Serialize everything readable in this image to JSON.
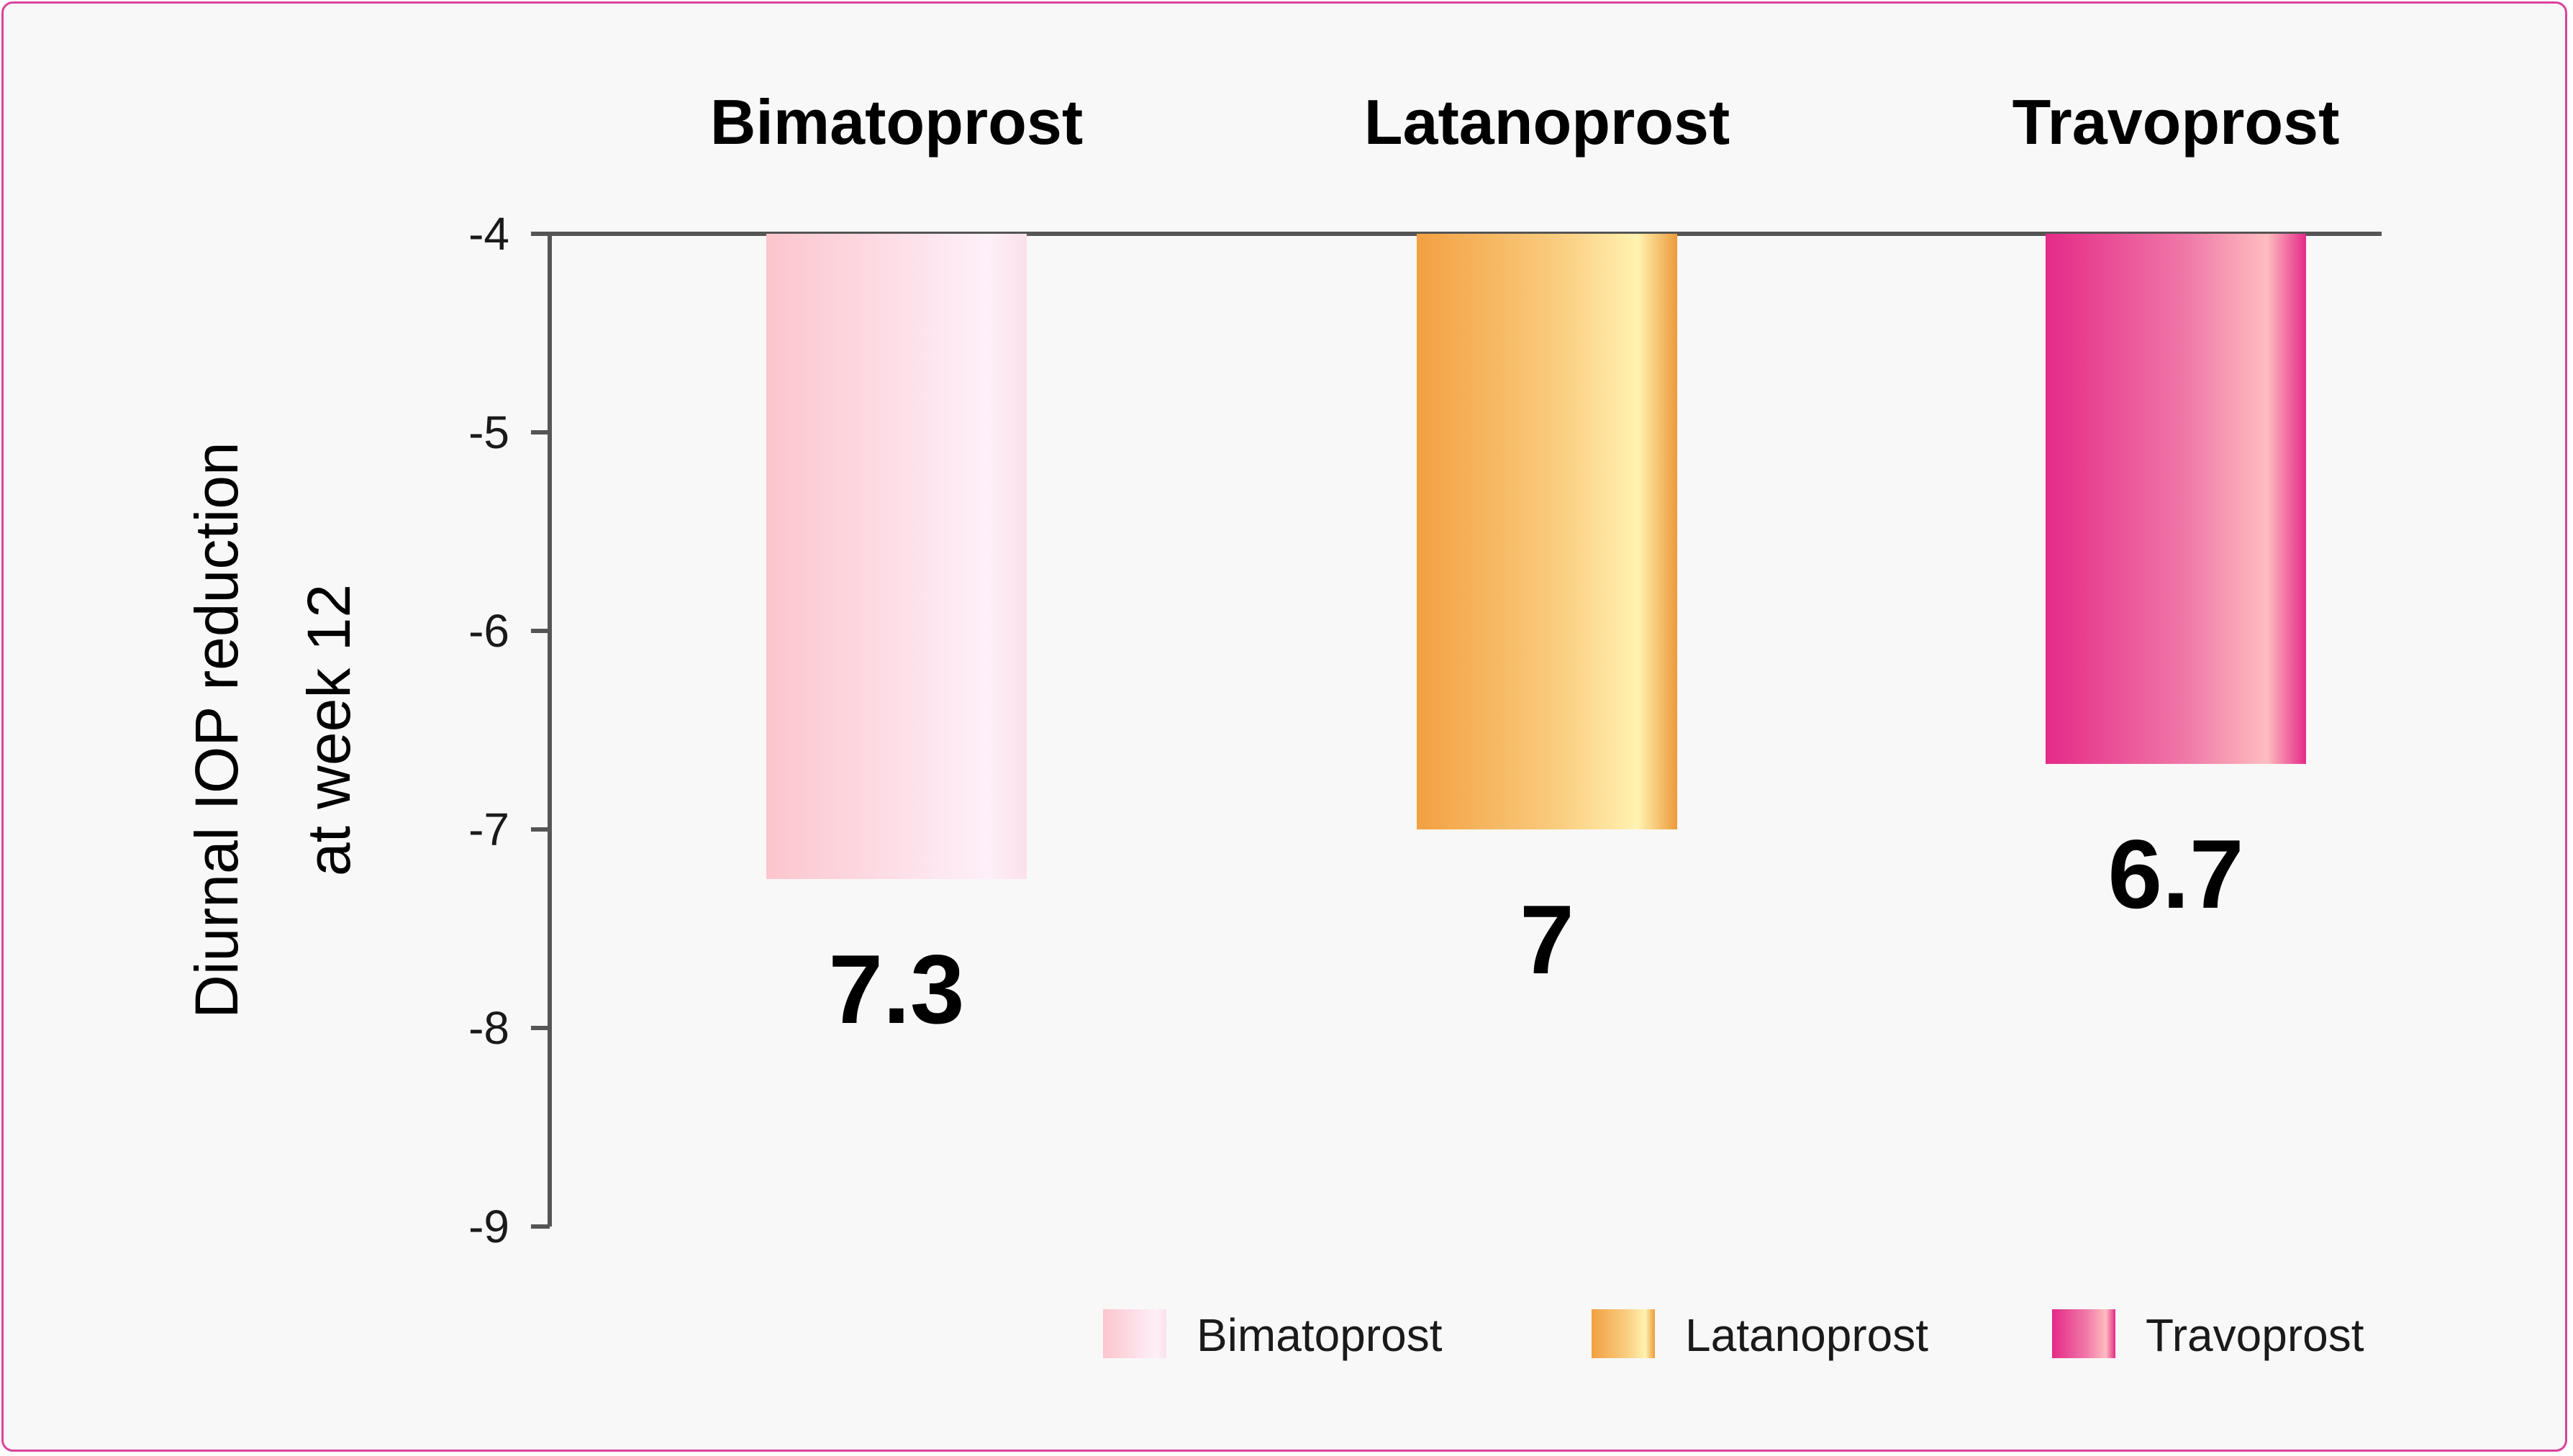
{
  "chart_data": {
    "type": "bar",
    "categories": [
      "Bimatoprost",
      "Latanoprost",
      "Travoprost"
    ],
    "values": [
      -7.25,
      -7.0,
      -6.67
    ],
    "value_labels": [
      "7.3",
      "7",
      "6.7"
    ],
    "ylabel_lines": [
      "Diurnal IOP reduction",
      "at week 12"
    ],
    "yticks": [
      "-4",
      "-5",
      "-6",
      "-7",
      "-8",
      "-9"
    ],
    "ylim": [
      -9,
      -4
    ],
    "bars_hang_from_top": true,
    "category_labels_position": "top",
    "legend": {
      "position": "bottom-right",
      "entries": [
        "Bimatoprost",
        "Latanoprost",
        "Travoprost"
      ]
    },
    "colors": {
      "Bimatoprost": [
        "#fcc5cc",
        "#fde1ea",
        "#fdf0f8",
        "#fbe0ea"
      ],
      "Latanoprost": [
        "#f2a042",
        "#f9cd80",
        "#fff2b0",
        "#ec9a3a"
      ],
      "Travoprost": [
        "#e42a87",
        "#f07aa8",
        "#ffbcc0",
        "#e42a87"
      ]
    }
  }
}
